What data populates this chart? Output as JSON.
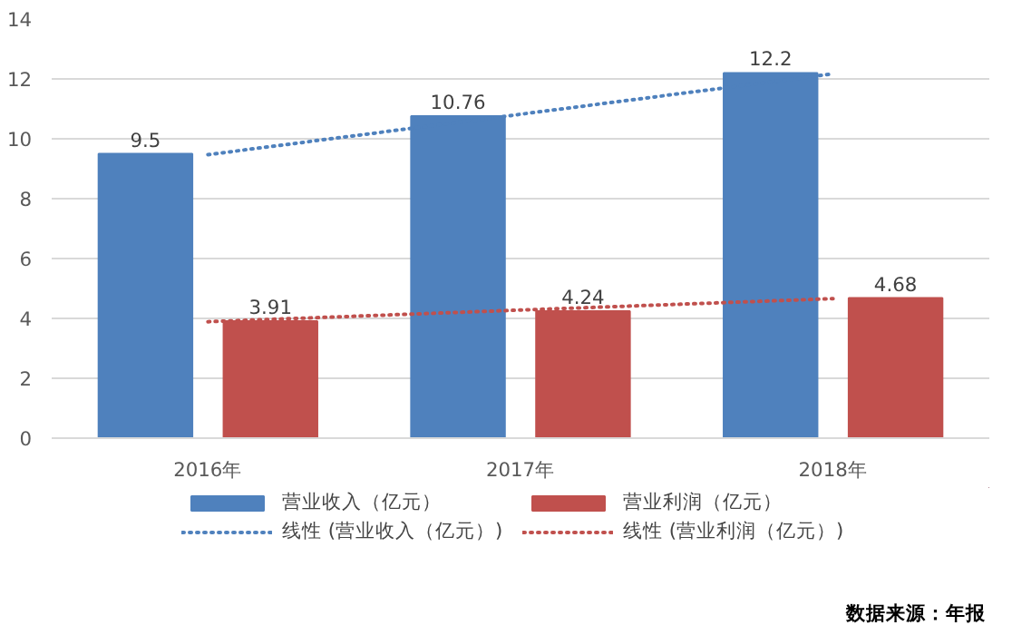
{
  "chart_data": {
    "type": "bar",
    "categories": [
      "2016年",
      "2017年",
      "2018年"
    ],
    "ylim": [
      0,
      14
    ],
    "yticks": [
      0,
      2,
      4,
      6,
      8,
      10,
      12,
      14
    ],
    "grid": "y",
    "legend": "bottom",
    "series": [
      {
        "name": "营业收入（亿元）",
        "color": "#4f81bd",
        "values": [
          9.5,
          10.76,
          12.2
        ],
        "value_labels": [
          "9.5",
          "10.76",
          "12.2"
        ]
      },
      {
        "name": "营业利润（亿元）",
        "color": "#c0504d",
        "values": [
          3.91,
          4.24,
          4.68
        ],
        "value_labels": [
          "3.91",
          "4.24",
          "4.68"
        ]
      },
      {
        "name": "线性 (营业收入（亿元）)",
        "type": "line",
        "line_style": "dotted",
        "color": "#4f81bd",
        "values": [
          9.47,
          10.82,
          12.17
        ]
      },
      {
        "name": "线性 (营业利润（亿元）)",
        "type": "line",
        "line_style": "dotted",
        "color": "#c0504d",
        "values": [
          3.89,
          4.28,
          4.66
        ]
      }
    ],
    "annotations": [
      "数据来源：年报"
    ]
  }
}
